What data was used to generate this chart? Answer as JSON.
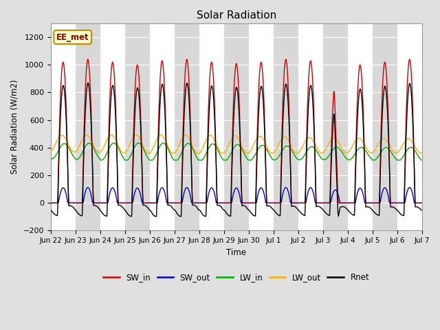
{
  "title": "Solar Radiation",
  "ylabel": "Solar Radiation (W/m2)",
  "xlabel": "Time",
  "ylim": [
    -200,
    1300
  ],
  "yticks": [
    -200,
    0,
    200,
    400,
    600,
    800,
    1000,
    1200
  ],
  "annotation_text": "EE_met",
  "annotation_bg": "#ffffcc",
  "annotation_border": "#cc8800",
  "colors": {
    "SW_in": "#cc0000",
    "SW_out": "#0000cc",
    "LW_in": "#00aa00",
    "LW_out": "#ffaa00",
    "Rnet": "#000000"
  },
  "band_colors": [
    "#ffffff",
    "#d8d8d8"
  ],
  "fig_bg": "#e0e0e0",
  "n_days": 15
}
